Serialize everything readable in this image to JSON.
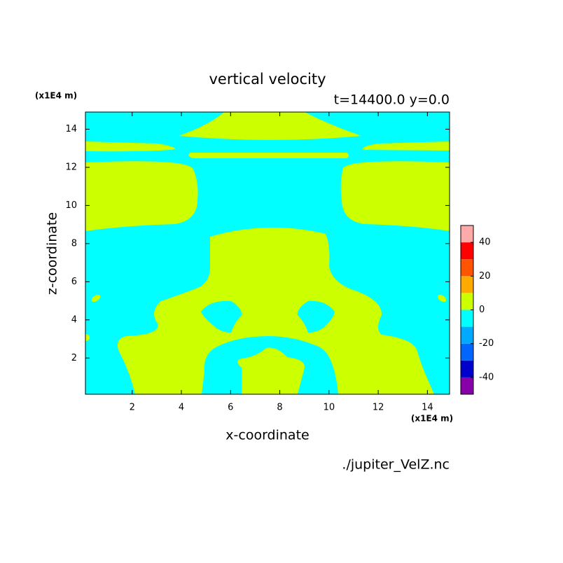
{
  "chart_data": {
    "type": "contour",
    "title": "vertical velocity",
    "subtitle": "t=14400.0 y=0.0",
    "x_label": "x-coordinate",
    "y_label": "z-coordinate",
    "x_unit": "(x1E4 m)",
    "y_unit": "(x1E4 m)",
    "source": "./jupiter_VelZ.nc",
    "xlim": [
      0.1,
      14.9
    ],
    "ylim": [
      0.1,
      14.9
    ],
    "xticks": [
      2,
      4,
      6,
      8,
      10,
      12,
      14
    ],
    "yticks": [
      2,
      4,
      6,
      8,
      10,
      12,
      14
    ],
    "colorbar": {
      "levels": [
        -50,
        -40,
        -30,
        -20,
        -10,
        0,
        10,
        20,
        30,
        40,
        50
      ],
      "colors": [
        "#8800aa",
        "#0000cc",
        "#0066ff",
        "#00aaff",
        "#00ffff",
        "#ccff00",
        "#ffaa00",
        "#ff5500",
        "#ff0000",
        "#ffaaaa"
      ],
      "ticks": [
        -40,
        -20,
        0,
        20,
        40
      ]
    }
  }
}
